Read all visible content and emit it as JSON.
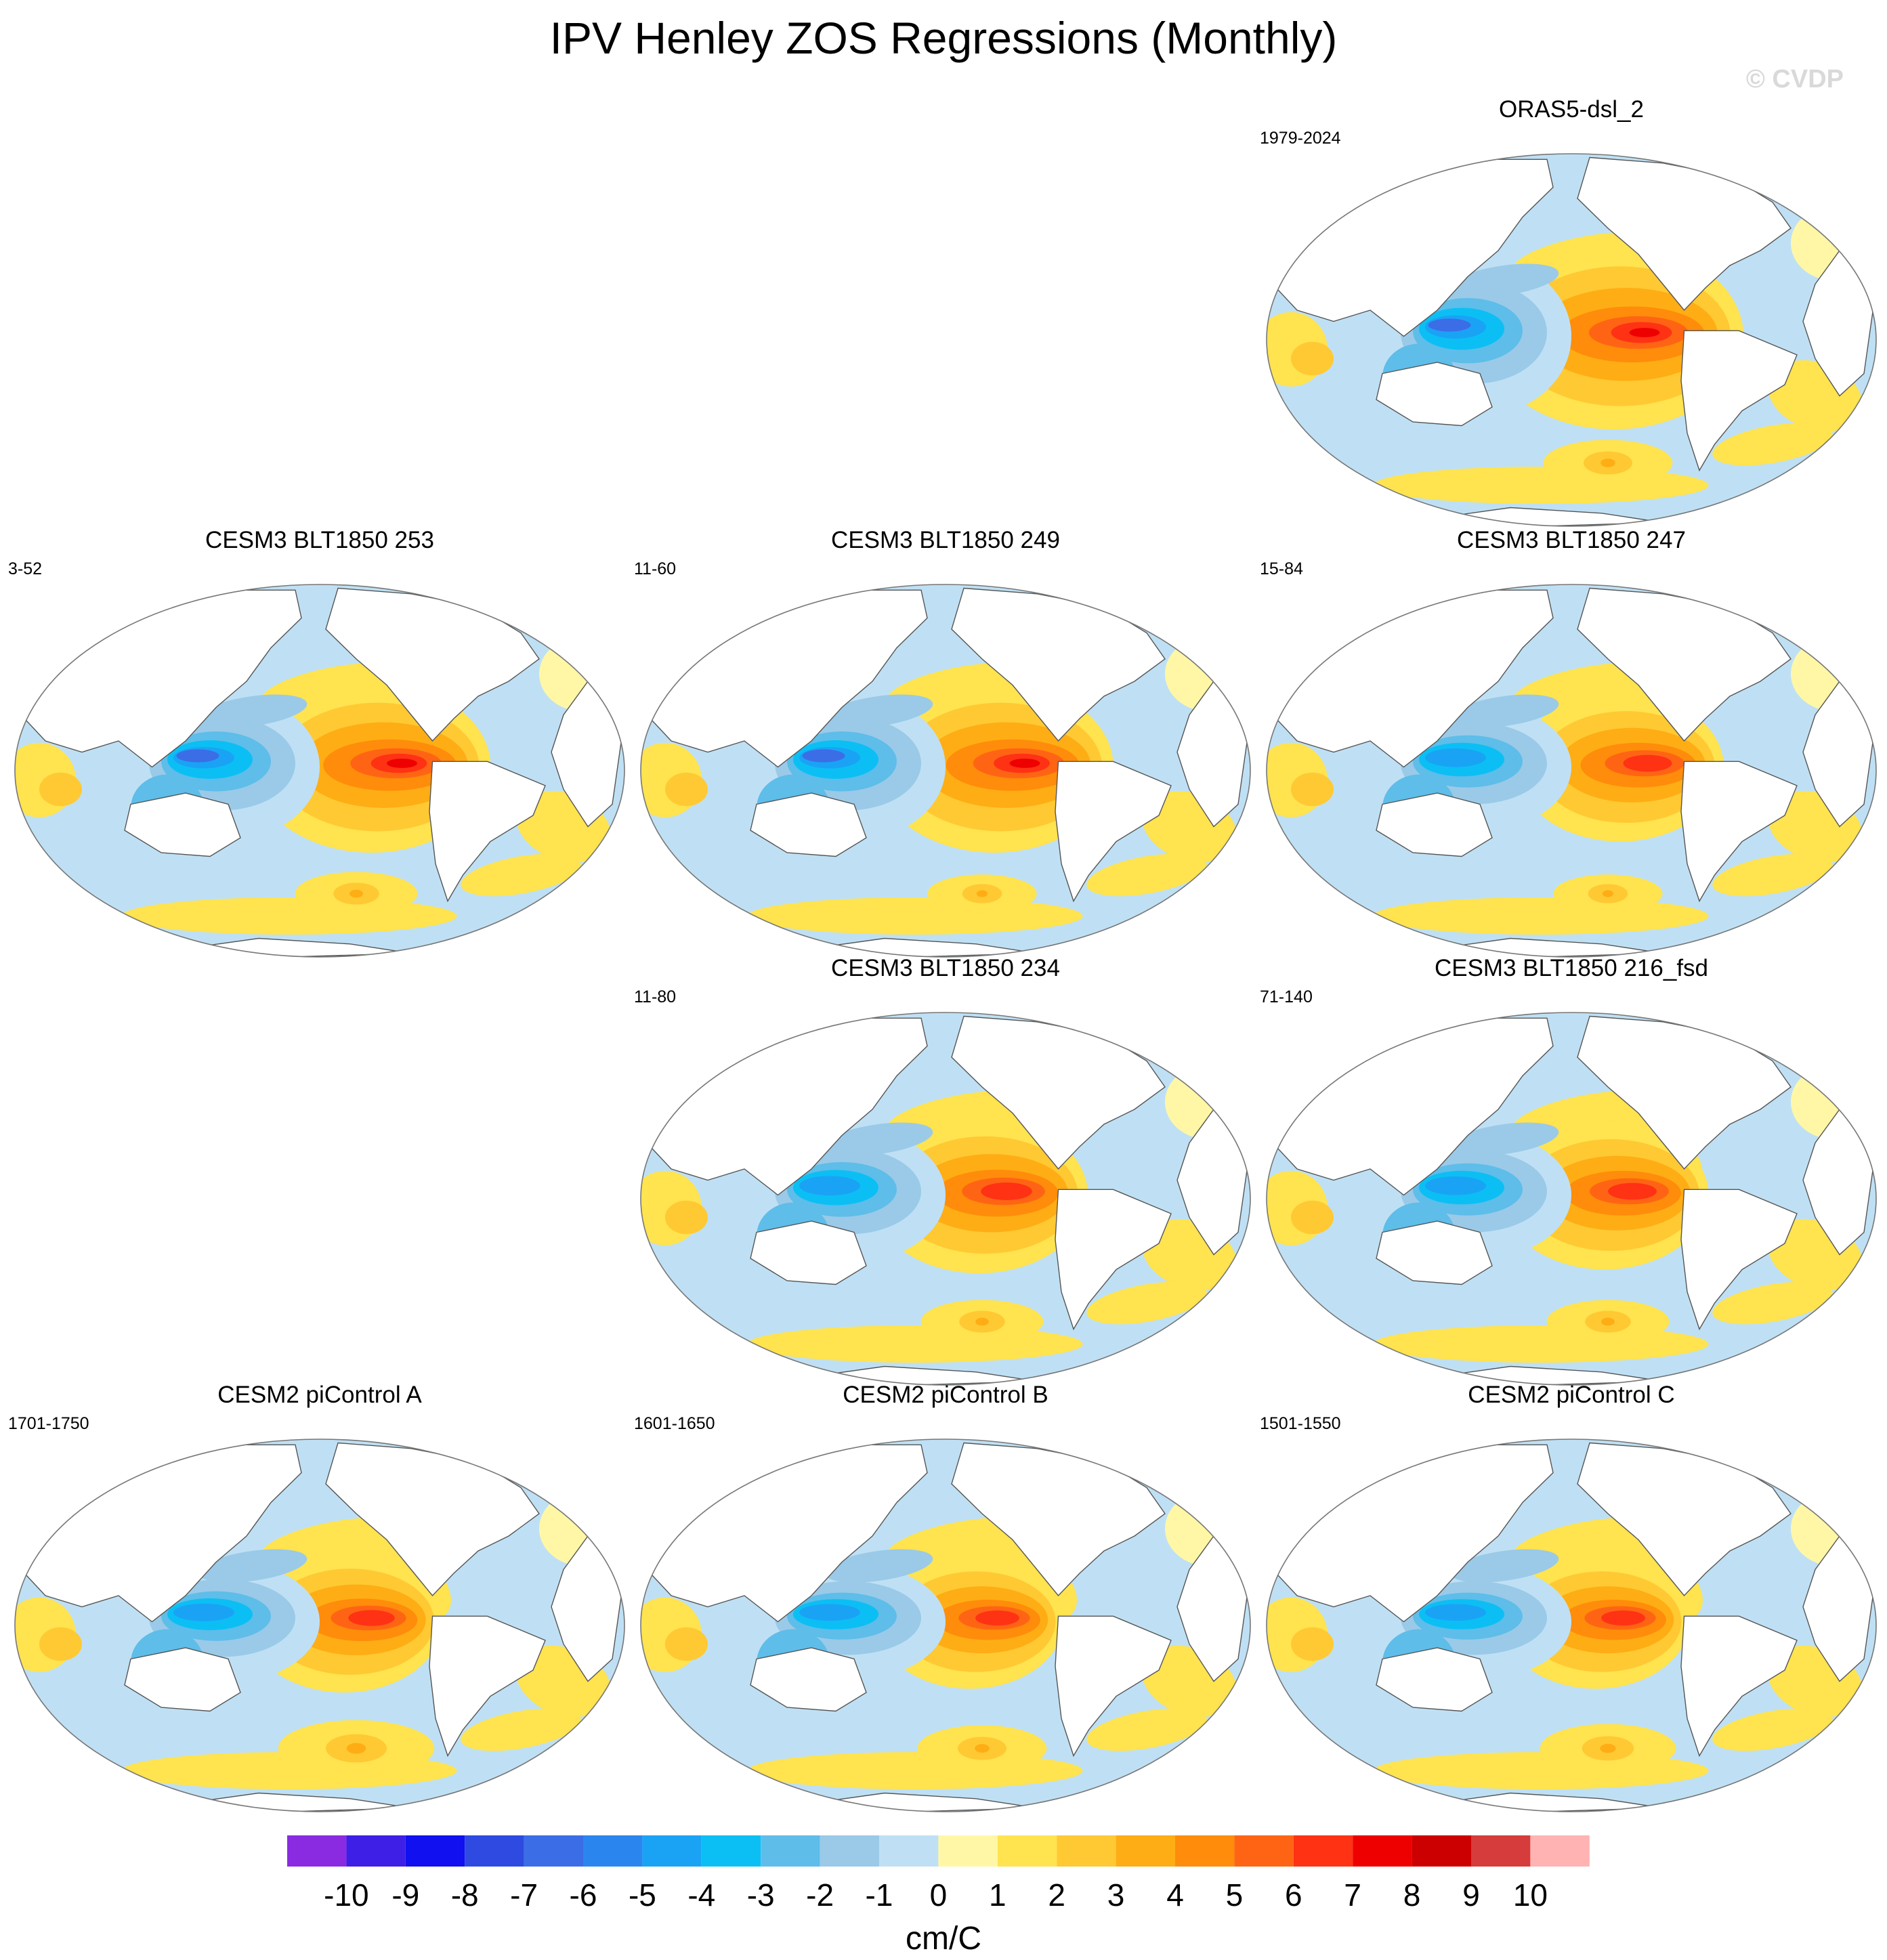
{
  "title": "IPV Henley ZOS Regressions (Monthly)",
  "watermark": "© CVDP",
  "colorbar": {
    "unit": "cm/C",
    "tick_labels": [
      "-10",
      "-9",
      "-8",
      "-7",
      "-6",
      "-5",
      "-4",
      "-3",
      "-2",
      "-1",
      "0",
      "1",
      "2",
      "3",
      "4",
      "5",
      "6",
      "7",
      "8",
      "9",
      "10"
    ],
    "colors": [
      "#8a2be2",
      "#3d1fe6",
      "#1010f0",
      "#2e4ae0",
      "#3b6de6",
      "#2a86ee",
      "#1aa3f5",
      "#0bbff4",
      "#5ebde9",
      "#9acae8",
      "#bfe0f4",
      "#fff7a6",
      "#ffe34f",
      "#ffc933",
      "#ffad14",
      "#ff8c0a",
      "#ff6414",
      "#ff3214",
      "#ee0000",
      "#cc0000",
      "#d63c3c",
      "#ffb3b3"
    ]
  },
  "panels": [
    {
      "title": "ORAS5-dsl_2",
      "period": "1979-2024",
      "strength": 1.25,
      "eq_shift": 0,
      "south_blob": 0.6
    },
    {
      "title": "CESM3 BLT1850 253",
      "period": "3-52",
      "strength": 1.15,
      "eq_shift": 0.03,
      "south_blob": 0.55
    },
    {
      "title": "CESM3 BLT1850 249",
      "period": "11-60",
      "strength": 1.15,
      "eq_shift": 0.02,
      "south_blob": 0.45
    },
    {
      "title": "CESM3 BLT1850 247",
      "period": "15-84",
      "strength": 1.0,
      "eq_shift": 0.02,
      "south_blob": 0.45
    },
    {
      "title": "CESM3 BLT1850 234",
      "period": "11-80",
      "strength": 1.05,
      "eq_shift": -0.03,
      "south_blob": 0.55
    },
    {
      "title": "CESM3 BLT1850 216_fsd",
      "period": "71-140",
      "strength": 1.0,
      "eq_shift": -0.03,
      "south_blob": 0.55
    },
    {
      "title": "CESM2 piControl A",
      "period": "1701-1750",
      "strength": 0.95,
      "eq_shift": -0.06,
      "south_blob": 0.8
    },
    {
      "title": "CESM2 piControl B",
      "period": "1601-1650",
      "strength": 0.9,
      "eq_shift": -0.06,
      "south_blob": 0.6
    },
    {
      "title": "CESM2 piControl C",
      "period": "1501-1550",
      "strength": 0.9,
      "eq_shift": -0.06,
      "south_blob": 0.65
    }
  ],
  "chart_data": {
    "type": "map-panels",
    "title": "IPV Henley ZOS Regressions (Monthly)",
    "colorbar_label": "cm/C",
    "levels": [
      -10,
      -9,
      -8,
      -7,
      -6,
      -5,
      -4,
      -3,
      -2,
      -1,
      0,
      1,
      2,
      3,
      4,
      5,
      6,
      7,
      8,
      9,
      10
    ],
    "panels": [
      "ORAS5-dsl_2",
      "CESM3 BLT1850 253",
      "CESM3 BLT1850 249",
      "CESM3 BLT1850 247",
      "CESM3 BLT1850 234",
      "CESM3 BLT1850 216_fsd",
      "CESM2 piControl A",
      "CESM2 piControl B",
      "CESM2 piControl C"
    ]
  }
}
